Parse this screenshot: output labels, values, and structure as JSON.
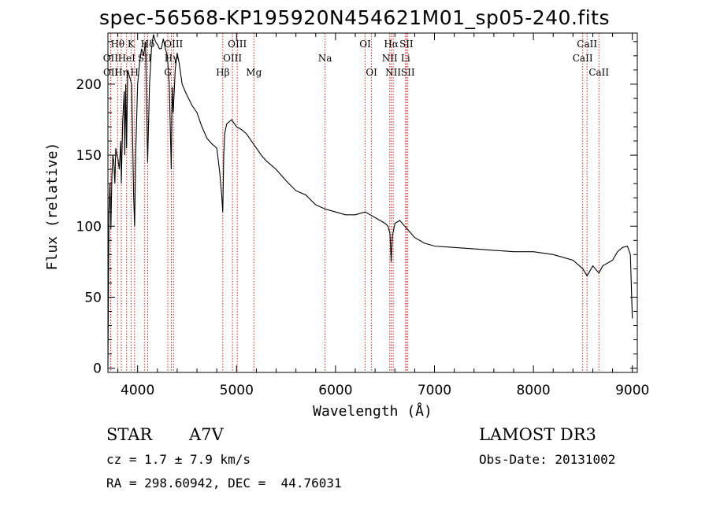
{
  "chart_data": {
    "type": "line",
    "title": "spec-56568-KP195920N454621M01_sp05-240.fits",
    "xlabel": "Wavelength (Å)",
    "ylabel": "Flux (relative)",
    "xlim": [
      3700,
      9050
    ],
    "ylim": [
      -3,
      236
    ],
    "xticks": [
      4000,
      5000,
      6000,
      7000,
      8000,
      9000
    ],
    "yticks": [
      0,
      50,
      100,
      150,
      200
    ],
    "series": [
      {
        "name": "flux",
        "x": [
          3700,
          3710,
          3720,
          3730,
          3740,
          3750,
          3760,
          3770,
          3780,
          3790,
          3800,
          3815,
          3830,
          3835,
          3850,
          3865,
          3870,
          3880,
          3889,
          3900,
          3920,
          3940,
          3960,
          3970,
          3980,
          4000,
          4020,
          4040,
          4060,
          4080,
          4101,
          4120,
          4140,
          4160,
          4180,
          4200,
          4220,
          4240,
          4260,
          4280,
          4300,
          4320,
          4340,
          4350,
          4360,
          4380,
          4400,
          4420,
          4450,
          4480,
          4500,
          4550,
          4600,
          4650,
          4700,
          4750,
          4800,
          4830,
          4850,
          4861,
          4870,
          4880,
          4900,
          4950,
          5000,
          5050,
          5100,
          5150,
          5200,
          5250,
          5300,
          5400,
          5500,
          5600,
          5700,
          5800,
          5900,
          6000,
          6100,
          6200,
          6300,
          6350,
          6400,
          6450,
          6500,
          6530,
          6550,
          6563,
          6575,
          6600,
          6650,
          6700,
          6750,
          6800,
          6900,
          7000,
          7200,
          7400,
          7600,
          7800,
          8000,
          8200,
          8400,
          8500,
          8542,
          8600,
          8662,
          8700,
          8800,
          8850,
          8900,
          8950,
          8980,
          9000
        ],
        "values": [
          0,
          110,
          130,
          98,
          135,
          150,
          145,
          130,
          155,
          150,
          148,
          140,
          160,
          130,
          175,
          195,
          150,
          200,
          155,
          210,
          205,
          200,
          120,
          100,
          150,
          200,
          215,
          225,
          220,
          230,
          145,
          200,
          225,
          235,
          230,
          228,
          225,
          225,
          232,
          225,
          220,
          200,
          140,
          198,
          180,
          210,
          222,
          215,
          200,
          195,
          192,
          185,
          180,
          170,
          162,
          158,
          155,
          138,
          122,
          110,
          150,
          165,
          172,
          175,
          170,
          168,
          165,
          160,
          155,
          150,
          146,
          140,
          132,
          125,
          122,
          115,
          112,
          110,
          108,
          108,
          110,
          108,
          106,
          104,
          102,
          100,
          95,
          75,
          93,
          102,
          104,
          100,
          96,
          92,
          88,
          86,
          85,
          84,
          83,
          82,
          82,
          80,
          76,
          70,
          65,
          72,
          67,
          72,
          76,
          82,
          85,
          86,
          80,
          35
        ]
      }
    ],
    "lines": [
      {
        "label": "Hθ",
        "x": 3798,
        "row": 0
      },
      {
        "label": "OII",
        "x": 3727,
        "row": 1
      },
      {
        "label": "OII",
        "x": 3729,
        "row": 2
      },
      {
        "label": "Hη",
        "x": 3835,
        "row": 2
      },
      {
        "label": "HeI",
        "x": 3889,
        "row": 1
      },
      {
        "label": "K",
        "x": 3934,
        "row": 0
      },
      {
        "label": "H",
        "x": 3969,
        "row": 2
      },
      {
        "label": "SII",
        "x": 4072,
        "row": 1
      },
      {
        "label": "Hδ",
        "x": 4102,
        "row": 0
      },
      {
        "label": "OIII",
        "x": 4363,
        "row": 0
      },
      {
        "label": "Hγ",
        "x": 4341,
        "row": 1
      },
      {
        "label": "G",
        "x": 4305,
        "row": 2
      },
      {
        "label": "Hβ",
        "x": 4861,
        "row": 2
      },
      {
        "label": "OIII",
        "x": 5007,
        "row": 0
      },
      {
        "label": "OIII",
        "x": 4959,
        "row": 1
      },
      {
        "label": "Mg",
        "x": 5175,
        "row": 2
      },
      {
        "label": "Na",
        "x": 5894,
        "row": 1
      },
      {
        "label": "OI",
        "x": 6300,
        "row": 0
      },
      {
        "label": "OI",
        "x": 6364,
        "row": 2
      },
      {
        "label": "Hα",
        "x": 6563,
        "row": 0
      },
      {
        "label": "SII",
        "x": 6716,
        "row": 0
      },
      {
        "label": "NII",
        "x": 6548,
        "row": 1
      },
      {
        "label": "Li",
        "x": 6708,
        "row": 1
      },
      {
        "label": "NII",
        "x": 6583,
        "row": 2
      },
      {
        "label": "SII",
        "x": 6731,
        "row": 2
      },
      {
        "label": "CaII",
        "x": 8542,
        "row": 0
      },
      {
        "label": "CaII",
        "x": 8498,
        "row": 1
      },
      {
        "label": "CaII",
        "x": 8662,
        "row": 2
      }
    ]
  },
  "info": {
    "object_class": "STAR",
    "subclass": "A7V",
    "survey": "LAMOST DR3",
    "cz": "cz = 1.7 ± 7.9 km/s",
    "obs_date": "Obs-Date: 20131002",
    "coords": "RA = 298.60942, DEC =  44.76031"
  },
  "colors": {
    "line": "#000000",
    "marker": "#cc2222"
  }
}
